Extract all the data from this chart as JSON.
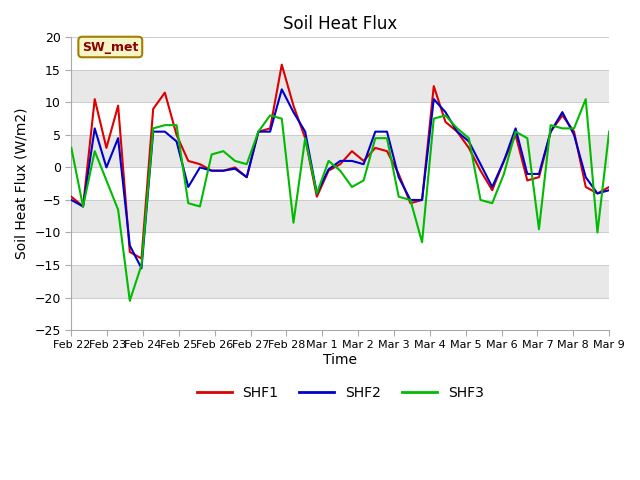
{
  "title": "Soil Heat Flux",
  "xlabel": "Time",
  "ylabel": "Soil Heat Flux (W/m2)",
  "ylim": [
    -25,
    20
  ],
  "yticks": [
    -25,
    -20,
    -15,
    -10,
    -5,
    0,
    5,
    10,
    15,
    20
  ],
  "annotation": "SW_met",
  "line_colors": {
    "SHF1": "#dd0000",
    "SHF2": "#0000cc",
    "SHF3": "#00bb00"
  },
  "line_width": 1.5,
  "x_labels": [
    "Feb 22",
    "Feb 23",
    "Feb 24",
    "Feb 25",
    "Feb 26",
    "Feb 27",
    "Feb 28",
    "Mar 1",
    "Mar 2",
    "Mar 3",
    "Mar 4",
    "Mar 5",
    "Mar 6",
    "Mar 7",
    "Mar 8",
    "Mar 9"
  ],
  "band_colors": [
    "#ffffff",
    "#e8e8e8"
  ],
  "SHF1": [
    -4.5,
    -6,
    10.5,
    3,
    9.5,
    -13,
    -14,
    9,
    11.5,
    5,
    1,
    0.5,
    -0.5,
    -0.5,
    0,
    -1.5,
    5.5,
    6,
    15.8,
    9.5,
    4.5,
    -4.5,
    -0.5,
    0.5,
    2.5,
    1,
    3,
    2.5,
    -1,
    -5.5,
    -5,
    12.5,
    7,
    5.5,
    3,
    -0.5,
    -3.5,
    1,
    5,
    -2,
    -1.5,
    5.5,
    8,
    5.5,
    -3,
    -4,
    -3
  ],
  "SHF2": [
    -5,
    -6,
    6,
    0,
    4.5,
    -12,
    -15.5,
    5.5,
    5.5,
    4,
    -3,
    0,
    -0.5,
    -0.5,
    -0.2,
    -1.5,
    5.5,
    5.5,
    12,
    8.5,
    5.5,
    -4,
    -0.3,
    1,
    1,
    0.5,
    5.5,
    5.5,
    -1.5,
    -5,
    -5,
    10.5,
    8.5,
    5.5,
    4,
    0.5,
    -3,
    1,
    6,
    -1,
    -1,
    5.5,
    8.5,
    5,
    -1.5,
    -4,
    -3.5
  ],
  "SHF3": [
    3,
    -6,
    2.5,
    -2,
    -6.5,
    -20.5,
    -15,
    6,
    6.5,
    6.5,
    -5.5,
    -6,
    2,
    2.5,
    1,
    0.5,
    5.5,
    8,
    7.5,
    -8.5,
    4.5,
    -4,
    1,
    -0.5,
    -3,
    -2,
    4.5,
    4.5,
    -4.5,
    -5,
    -11.5,
    7.5,
    8,
    6,
    4.5,
    -5,
    -5.5,
    -1,
    5.5,
    4.5,
    -9.5,
    6.5,
    6,
    6,
    10.5,
    -10,
    5.5
  ]
}
